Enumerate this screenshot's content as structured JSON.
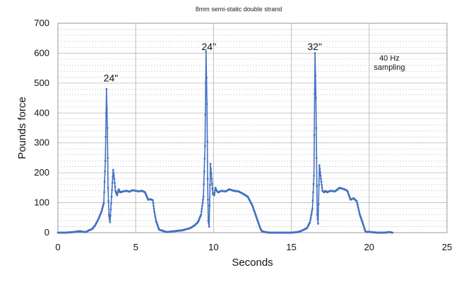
{
  "chart_data": {
    "type": "line",
    "title": "8mm semi-static double strand",
    "xlabel": "Seconds",
    "ylabel": "Pounds force",
    "xlim": [
      0,
      25
    ],
    "ylim": [
      0,
      700
    ],
    "x_ticks": [
      "0",
      "5",
      "10",
      "15",
      "20",
      "25"
    ],
    "y_ticks": [
      "0",
      "100",
      "200",
      "300",
      "400",
      "500",
      "600",
      "700"
    ],
    "x_tick_values": [
      0,
      5,
      10,
      15,
      20,
      25
    ],
    "y_tick_values": [
      0,
      100,
      200,
      300,
      400,
      500,
      600,
      700
    ],
    "major_grid_x": [
      5,
      10,
      15,
      20
    ],
    "minor_grid_y_step": 20,
    "grid": true,
    "legend": "none",
    "series_color": "#4472C4",
    "annotations": [
      {
        "text": "24\"",
        "x": 3.4,
        "y": 505
      },
      {
        "text": "24\"",
        "x": 9.7,
        "y": 610
      },
      {
        "text": "32\"",
        "x": 16.5,
        "y": 610
      },
      {
        "text": "40 Hz",
        "x": 21.3,
        "y": 575
      },
      {
        "text": "sampling",
        "x": 21.3,
        "y": 545
      }
    ],
    "series": [
      {
        "x": [
          0,
          0.5,
          1.0,
          1.4,
          1.6,
          1.8,
          2.0,
          2.2,
          2.4,
          2.6,
          2.8,
          2.95,
          3.05,
          3.12,
          3.18,
          3.22,
          3.28,
          3.35,
          3.45,
          3.55,
          3.62,
          3.7,
          3.8,
          3.9,
          4.0,
          4.2,
          4.4,
          4.6,
          4.8,
          5.0,
          5.2,
          5.4,
          5.6,
          5.8,
          5.95,
          6.1,
          6.2,
          6.3,
          6.5,
          7.0,
          7.5,
          8.0,
          8.5,
          8.8,
          9.0,
          9.2,
          9.35,
          9.45,
          9.52,
          9.58,
          9.62,
          9.66,
          9.72,
          9.8,
          9.88,
          9.95,
          10.05,
          10.12,
          10.2,
          10.3,
          10.5,
          10.8,
          11.0,
          11.3,
          11.6,
          11.9,
          12.2,
          12.5,
          12.7,
          12.9,
          13.0,
          13.1,
          13.3,
          13.6,
          14.0,
          14.5,
          15.0,
          15.4,
          15.6,
          15.8,
          16.0,
          16.2,
          16.35,
          16.45,
          16.52,
          16.58,
          16.62,
          16.66,
          16.72,
          16.8,
          16.9,
          17.0,
          17.1,
          17.2,
          17.3,
          17.5,
          17.8,
          18.1,
          18.4,
          18.6,
          18.8,
          19.0,
          19.2,
          19.4,
          19.6,
          19.75,
          19.85,
          19.95,
          20.1,
          20.5,
          21.0,
          21.3,
          21.5
        ],
        "y": [
          0,
          0,
          2,
          5,
          3,
          2,
          8,
          12,
          25,
          45,
          70,
          100,
          240,
          480,
          350,
          150,
          60,
          35,
          120,
          210,
          180,
          140,
          125,
          145,
          135,
          138,
          140,
          137,
          142,
          140,
          138,
          140,
          135,
          110,
          112,
          108,
          70,
          40,
          10,
          2,
          5,
          8,
          15,
          25,
          35,
          60,
          120,
          290,
          605,
          430,
          180,
          40,
          20,
          230,
          180,
          130,
          125,
          150,
          140,
          135,
          140,
          138,
          145,
          140,
          138,
          130,
          120,
          90,
          60,
          30,
          15,
          5,
          2,
          0,
          0,
          0,
          0,
          2,
          5,
          10,
          15,
          35,
          80,
          190,
          600,
          450,
          250,
          60,
          30,
          225,
          180,
          140,
          135,
          140,
          135,
          140,
          138,
          150,
          145,
          140,
          110,
          115,
          105,
          60,
          30,
          5,
          2,
          3,
          2,
          0,
          0,
          2,
          0
        ]
      }
    ]
  }
}
